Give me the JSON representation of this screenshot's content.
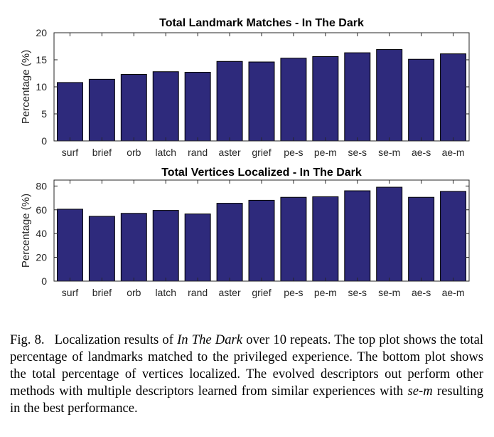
{
  "chart_data": [
    {
      "type": "bar",
      "title": "Total Landmark Matches - In The Dark",
      "xlabel": "",
      "ylabel": "Percentage (%)",
      "ylim": [
        0,
        20
      ],
      "yticks": [
        0,
        5,
        10,
        15,
        20
      ],
      "categories": [
        "surf",
        "brief",
        "orb",
        "latch",
        "rand",
        "aster",
        "grief",
        "pe-s",
        "pe-m",
        "se-s",
        "se-m",
        "ae-s",
        "ae-m"
      ],
      "values": [
        10.8,
        11.4,
        12.3,
        12.8,
        12.7,
        14.7,
        14.6,
        15.3,
        15.6,
        16.3,
        16.9,
        15.1,
        16.1
      ],
      "bar_color": "#2e2a7c",
      "grid": false
    },
    {
      "type": "bar",
      "title": "Total Vertices Localized - In The Dark",
      "xlabel": "",
      "ylabel": "Percentage (%)",
      "ylim": [
        0,
        85
      ],
      "yticks": [
        0,
        20,
        40,
        60,
        80
      ],
      "categories": [
        "surf",
        "brief",
        "orb",
        "latch",
        "rand",
        "aster",
        "grief",
        "pe-s",
        "pe-m",
        "se-s",
        "se-m",
        "ae-s",
        "ae-m"
      ],
      "values": [
        60.5,
        54.5,
        57,
        59.5,
        56.5,
        65.5,
        68,
        70.5,
        71,
        76,
        79,
        70.5,
        75.5
      ],
      "bar_color": "#2e2a7c",
      "grid": false
    }
  ],
  "caption": {
    "label": "Fig. 8.",
    "seg1": "Localization results of ",
    "em1": "In The Dark",
    "seg2": " over 10 repeats. The top plot shows the total percentage of landmarks matched to the privileged experience. The bottom plot shows the total percentage of vertices localized. The evolved descriptors out perform other methods with multiple descriptors learned from similar experiences with ",
    "em2": "se-m",
    "seg3": " resulting in the best performance."
  }
}
